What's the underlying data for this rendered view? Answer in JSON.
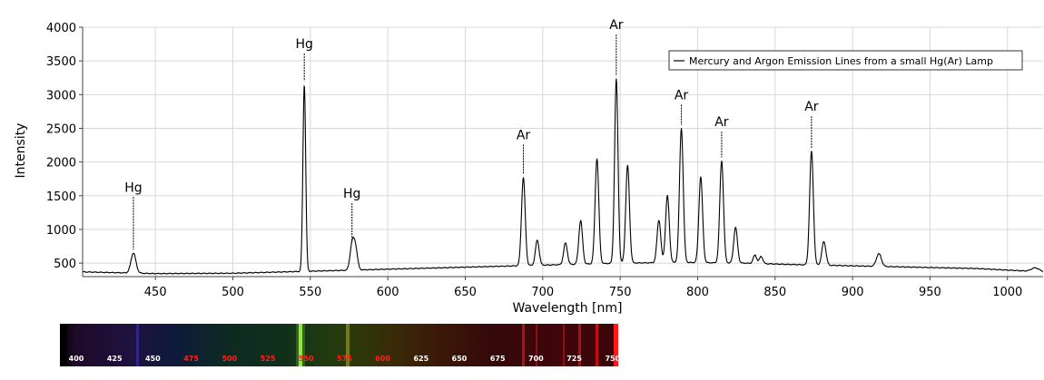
{
  "chart_data": {
    "type": "line",
    "xlabel": "Wavelength [nm]",
    "ylabel": "Intensity",
    "xlim": [
      403,
      1023
    ],
    "ylim": [
      300,
      4000
    ],
    "x_ticks": [
      450,
      500,
      550,
      600,
      650,
      700,
      750,
      800,
      850,
      900,
      950,
      1000
    ],
    "y_ticks": [
      500,
      1000,
      1500,
      2000,
      2500,
      3000,
      3500,
      4000
    ],
    "grid": true,
    "legend_position": "top-right",
    "series": [
      {
        "name": "Mercury and Argon Emission Lines from a small Hg(Ar) Lamp",
        "color": "#000000",
        "baseline": [
          [
            403,
            370
          ],
          [
            450,
            345
          ],
          [
            500,
            350
          ],
          [
            550,
            380
          ],
          [
            600,
            410
          ],
          [
            650,
            440
          ],
          [
            700,
            470
          ],
          [
            750,
            500
          ],
          [
            790,
            510
          ],
          [
            830,
            500
          ],
          [
            860,
            480
          ],
          [
            900,
            460
          ],
          [
            940,
            440
          ],
          [
            980,
            420
          ],
          [
            1023,
            370
          ]
        ],
        "peaks": [
          {
            "x": 435.8,
            "y": 650,
            "w": 1.6
          },
          {
            "x": 546.1,
            "y": 3150,
            "w": 0.9
          },
          {
            "x": 576.9,
            "y": 760,
            "w": 1.3
          },
          {
            "x": 579.1,
            "y": 720,
            "w": 1.3
          },
          {
            "x": 687.5,
            "y": 1770,
            "w": 1.2
          },
          {
            "x": 696.5,
            "y": 840,
            "w": 1.2
          },
          {
            "x": 714.7,
            "y": 800,
            "w": 1.2
          },
          {
            "x": 724.5,
            "y": 1130,
            "w": 1.2
          },
          {
            "x": 735.0,
            "y": 2050,
            "w": 1.2
          },
          {
            "x": 747.5,
            "y": 3230,
            "w": 1.1
          },
          {
            "x": 754.8,
            "y": 1950,
            "w": 1.2
          },
          {
            "x": 775.0,
            "y": 1140,
            "w": 1.2
          },
          {
            "x": 780.5,
            "y": 1500,
            "w": 1.2
          },
          {
            "x": 789.5,
            "y": 2500,
            "w": 1.2
          },
          {
            "x": 802.0,
            "y": 1780,
            "w": 1.2
          },
          {
            "x": 815.5,
            "y": 2020,
            "w": 1.2
          },
          {
            "x": 824.5,
            "y": 1030,
            "w": 1.2
          },
          {
            "x": 837.0,
            "y": 620,
            "w": 1.1
          },
          {
            "x": 841.0,
            "y": 600,
            "w": 1.1
          },
          {
            "x": 873.5,
            "y": 2160,
            "w": 1.2
          },
          {
            "x": 881.5,
            "y": 820,
            "w": 1.3
          },
          {
            "x": 917.0,
            "y": 640,
            "w": 1.6
          },
          {
            "x": 1018.0,
            "y": 430,
            "w": 2.5
          }
        ]
      }
    ],
    "annotations": [
      {
        "label": "Hg",
        "x": 435.8,
        "top": 1480,
        "bottom": 700
      },
      {
        "label": "Hg",
        "x": 546.1,
        "top": 3610,
        "bottom": 3200
      },
      {
        "label": "Hg",
        "x": 576.9,
        "top": 1390,
        "bottom": 810
      },
      {
        "label": "Ar",
        "x": 687.5,
        "top": 2260,
        "bottom": 1820
      },
      {
        "label": "Ar",
        "x": 747.5,
        "top": 3890,
        "bottom": 3280
      },
      {
        "label": "Ar",
        "x": 789.5,
        "top": 2850,
        "bottom": 2550
      },
      {
        "label": "Ar",
        "x": 815.5,
        "top": 2450,
        "bottom": 2070
      },
      {
        "label": "Ar",
        "x": 873.5,
        "top": 2680,
        "bottom": 2210
      }
    ]
  },
  "spectrum_strip": {
    "ticks": [
      {
        "label": "400",
        "color": "#ffffff"
      },
      {
        "label": "425",
        "color": "#ffffff"
      },
      {
        "label": "450",
        "color": "#ffffff"
      },
      {
        "label": "475",
        "color": "#ff2020"
      },
      {
        "label": "500",
        "color": "#ff2020"
      },
      {
        "label": "525",
        "color": "#ff2020"
      },
      {
        "label": "550",
        "color": "#ff2020"
      },
      {
        "label": "575",
        "color": "#ff2020"
      },
      {
        "label": "600",
        "color": "#ff2020"
      },
      {
        "label": "625",
        "color": "#ffffff"
      },
      {
        "label": "650",
        "color": "#ffffff"
      },
      {
        "label": "675",
        "color": "#ffffff"
      },
      {
        "label": "700",
        "color": "#ffffff"
      },
      {
        "label": "725",
        "color": "#ffffff"
      },
      {
        "label": "750",
        "color": "#ffffff"
      }
    ]
  }
}
